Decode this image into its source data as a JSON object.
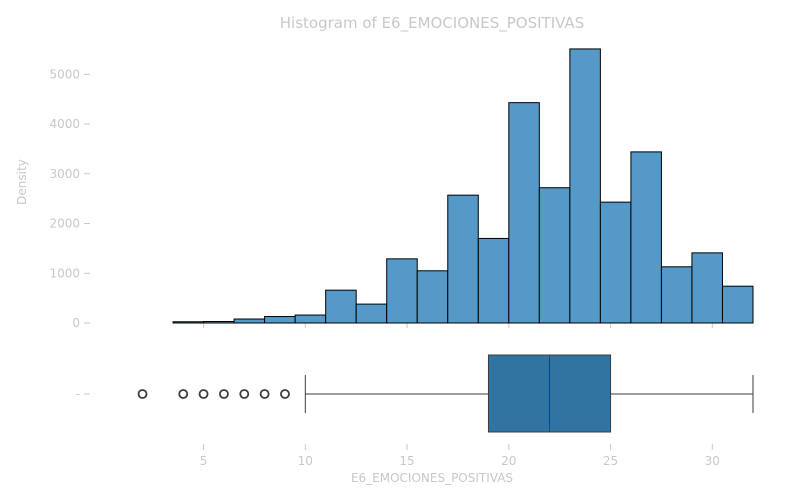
{
  "chart_data": [
    {
      "type": "bar",
      "title": "Histogram of E6_EMOCIONES_POSITIVAS",
      "xlabel": "",
      "ylabel": "Density",
      "xlim": [
        0.5,
        32
      ],
      "ylim": [
        0,
        5750
      ],
      "bar_color": "#5499c7",
      "edge_color": "#000000",
      "bins": [
        {
          "x0": 2.0,
          "x1": 3.5,
          "value": 0
        },
        {
          "x0": 3.5,
          "x1": 5.0,
          "value": 25
        },
        {
          "x0": 5.0,
          "x1": 6.5,
          "value": 30
        },
        {
          "x0": 6.5,
          "x1": 8.0,
          "value": 80
        },
        {
          "x0": 8.0,
          "x1": 9.5,
          "value": 130
        },
        {
          "x0": 9.5,
          "x1": 11.0,
          "value": 160
        },
        {
          "x0": 11.0,
          "x1": 12.5,
          "value": 660
        },
        {
          "x0": 12.5,
          "x1": 14.0,
          "value": 380
        },
        {
          "x0": 14.0,
          "x1": 15.5,
          "value": 1290
        },
        {
          "x0": 15.5,
          "x1": 17.0,
          "value": 1050
        },
        {
          "x0": 17.0,
          "x1": 18.5,
          "value": 2570
        },
        {
          "x0": 18.5,
          "x1": 20.0,
          "value": 1700
        },
        {
          "x0": 20.0,
          "x1": 21.5,
          "value": 4430
        },
        {
          "x0": 21.5,
          "x1": 23.0,
          "value": 2720
        },
        {
          "x0": 23.0,
          "x1": 24.5,
          "value": 5510
        },
        {
          "x0": 24.5,
          "x1": 26.0,
          "value": 2430
        },
        {
          "x0": 26.0,
          "x1": 27.5,
          "value": 3440
        },
        {
          "x0": 27.5,
          "x1": 29.0,
          "value": 1130
        },
        {
          "x0": 29.0,
          "x1": 30.5,
          "value": 1410
        },
        {
          "x0": 30.5,
          "x1": 32.0,
          "value": 740
        }
      ],
      "yticks": [
        0,
        1000,
        2000,
        3000,
        4000,
        5000
      ],
      "ytick_labels": [
        "0",
        "1000",
        "2000",
        "3000",
        "4000",
        "5000"
      ]
    },
    {
      "type": "box",
      "xlabel": "E6_EMOCIONES_POSITIVAS",
      "ytick_label": "-",
      "box_color": "#3274a1",
      "stats": {
        "whislo": 10,
        "q1": 19,
        "median": 22,
        "q3": 25,
        "whishi": 32
      },
      "outliers": [
        2,
        4,
        5,
        6,
        7,
        8,
        9
      ],
      "xticks": [
        5,
        10,
        15,
        20,
        25,
        30
      ],
      "xtick_labels": [
        "5",
        "10",
        "15",
        "20",
        "25",
        "30"
      ]
    }
  ]
}
